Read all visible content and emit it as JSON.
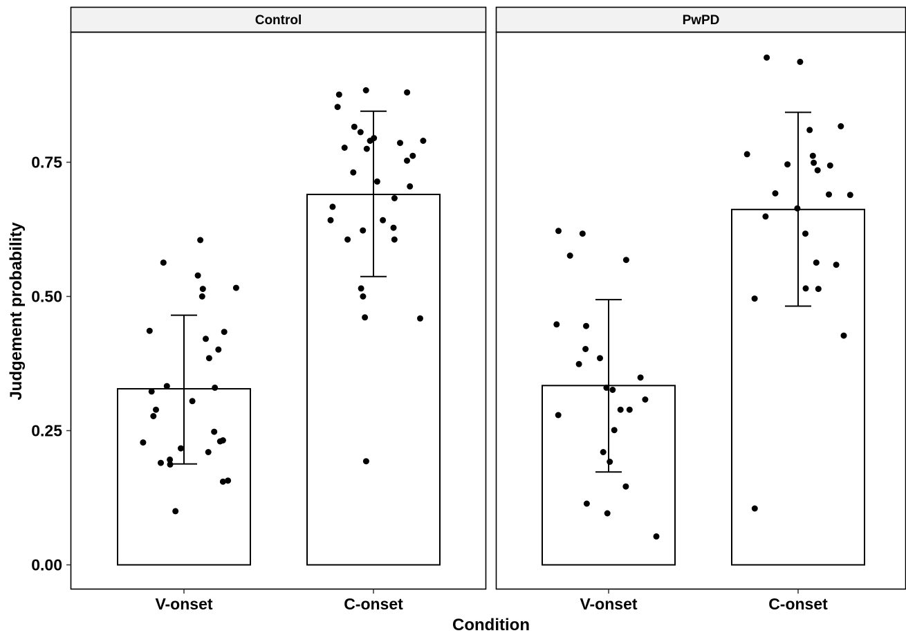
{
  "chart_data": {
    "type": "bar",
    "xlabel": "Condition",
    "ylabel": "Judgement probability",
    "ylim": [
      -0.11,
      0.99
    ],
    "yticks": [
      0.0,
      0.25,
      0.5,
      0.75
    ],
    "ytick_labels": [
      "0.00",
      "0.25",
      "0.50",
      "0.75"
    ],
    "categories": [
      "V-onset",
      "C-onset"
    ],
    "grid": false,
    "bar_fill": "#ffffff",
    "stroke_color": "#000000",
    "strip_fill": "#f2f2f2",
    "panels": [
      {
        "name": "Control",
        "bars": [
          {
            "category": "V-onset",
            "mean": 0.328,
            "err_low": 0.188,
            "err_high": 0.465,
            "points": [
              0.605,
              0.563,
              0.539,
              0.516,
              0.514,
              0.5,
              0.436,
              0.434,
              0.421,
              0.401,
              0.385,
              0.333,
              0.33,
              0.323,
              0.305,
              0.289,
              0.277,
              0.248,
              0.232,
              0.23,
              0.228,
              0.217,
              0.21,
              0.196,
              0.19,
              0.187,
              0.157,
              0.155,
              0.1
            ]
          },
          {
            "category": "C-onset",
            "mean": 0.69,
            "err_low": 0.537,
            "err_high": 0.845,
            "points": [
              0.884,
              0.88,
              0.876,
              0.853,
              0.816,
              0.806,
              0.795,
              0.79,
              0.79,
              0.786,
              0.777,
              0.775,
              0.762,
              0.753,
              0.731,
              0.714,
              0.705,
              0.683,
              0.667,
              0.642,
              0.642,
              0.628,
              0.623,
              0.606,
              0.606,
              0.515,
              0.5,
              0.461,
              0.459,
              0.193
            ]
          }
        ]
      },
      {
        "name": "PwPD",
        "bars": [
          {
            "category": "V-onset",
            "mean": 0.334,
            "err_low": 0.173,
            "err_high": 0.494,
            "points": [
              0.622,
              0.617,
              0.576,
              0.568,
              0.448,
              0.445,
              0.402,
              0.385,
              0.374,
              0.349,
              0.33,
              0.326,
              0.308,
              0.289,
              0.289,
              0.279,
              0.251,
              0.21,
              0.192,
              0.146,
              0.114,
              0.096,
              0.053
            ]
          },
          {
            "category": "C-onset",
            "mean": 0.662,
            "err_low": 0.482,
            "err_high": 0.843,
            "points": [
              0.945,
              0.937,
              0.817,
              0.81,
              0.765,
              0.762,
              0.749,
              0.746,
              0.744,
              0.735,
              0.692,
              0.69,
              0.689,
              0.664,
              0.649,
              0.617,
              0.563,
              0.559,
              0.515,
              0.514,
              0.496,
              0.427,
              0.105
            ]
          }
        ]
      }
    ]
  }
}
